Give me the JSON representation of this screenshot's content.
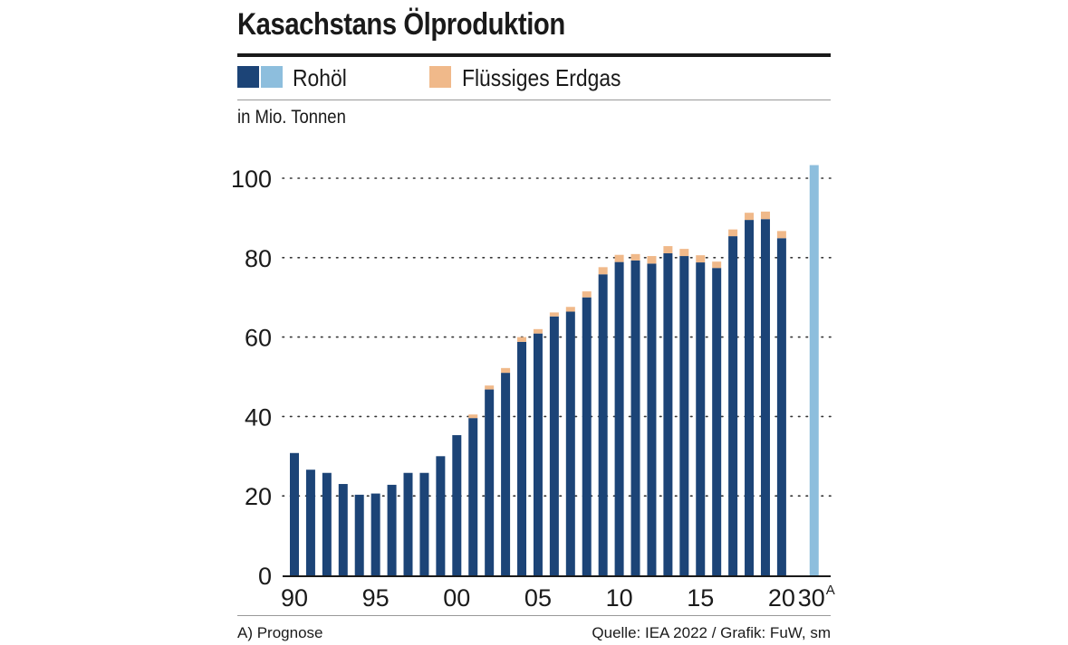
{
  "title": "Kasachstans Ölproduktion",
  "legend": {
    "crude_label": "Rohöl",
    "lng_label": "Flüssiges Erdgas"
  },
  "unit_label": "in Mio. Tonnen",
  "footnote": "A) Prognose",
  "source": "Quelle: IEA 2022 / Grafik: FuW, sm",
  "colors": {
    "crude": "#1c4477",
    "crude_forecast": "#8dbedd",
    "lng": "#f0b98a",
    "text": "#1a1a1a"
  },
  "chart_data": {
    "type": "bar",
    "stacked": true,
    "ylim": [
      0,
      100
    ],
    "yticks": [
      0,
      20,
      40,
      60,
      80,
      100
    ],
    "grid": "dotted horizontal",
    "legend_position": "top-left",
    "x_tick_labels": [
      {
        "label": "90",
        "index": 0
      },
      {
        "label": "95",
        "index": 5
      },
      {
        "label": "00",
        "index": 10
      },
      {
        "label": "05",
        "index": 15
      },
      {
        "label": "10",
        "index": 20
      },
      {
        "label": "15",
        "index": 25
      },
      {
        "label": "20",
        "index": 30
      },
      {
        "label": "30",
        "superscript": "A",
        "index": 32
      }
    ],
    "categories": [
      "1990",
      "1991",
      "1992",
      "1993",
      "1994",
      "1995",
      "1996",
      "1997",
      "1998",
      "1999",
      "2000",
      "2001",
      "2002",
      "2003",
      "2004",
      "2005",
      "2006",
      "2007",
      "2008",
      "2009",
      "2010",
      "2011",
      "2012",
      "2013",
      "2014",
      "2015",
      "2016",
      "2017",
      "2018",
      "2019",
      "2020",
      "",
      "2030"
    ],
    "series": [
      {
        "name": "Rohöl",
        "values": [
          30.8,
          26.6,
          25.8,
          23.0,
          20.3,
          20.6,
          22.8,
          25.8,
          25.8,
          30.0,
          35.3,
          39.6,
          46.8,
          51.0,
          58.8,
          60.9,
          65.2,
          66.4,
          70.0,
          75.8,
          78.9,
          79.3,
          78.5,
          81.1,
          80.4,
          78.8,
          77.4,
          85.4,
          89.5,
          89.7,
          84.9,
          0,
          0
        ],
        "forecast": [
          0,
          0,
          0,
          0,
          0,
          0,
          0,
          0,
          0,
          0,
          0,
          0,
          0,
          0,
          0,
          0,
          0,
          0,
          0,
          0,
          0,
          0,
          0,
          0,
          0,
          0,
          0,
          0,
          0,
          0,
          0,
          0,
          103.3
        ]
      },
      {
        "name": "Flüssiges Erdgas",
        "values": [
          0,
          0,
          0,
          0,
          0,
          0,
          0,
          0,
          0,
          0,
          0,
          0.9,
          1.0,
          1.2,
          1.2,
          1.1,
          1.0,
          1.2,
          1.5,
          1.8,
          1.8,
          1.6,
          1.9,
          1.8,
          1.8,
          1.8,
          1.6,
          1.7,
          1.8,
          1.9,
          1.8,
          0,
          0
        ]
      }
    ]
  }
}
